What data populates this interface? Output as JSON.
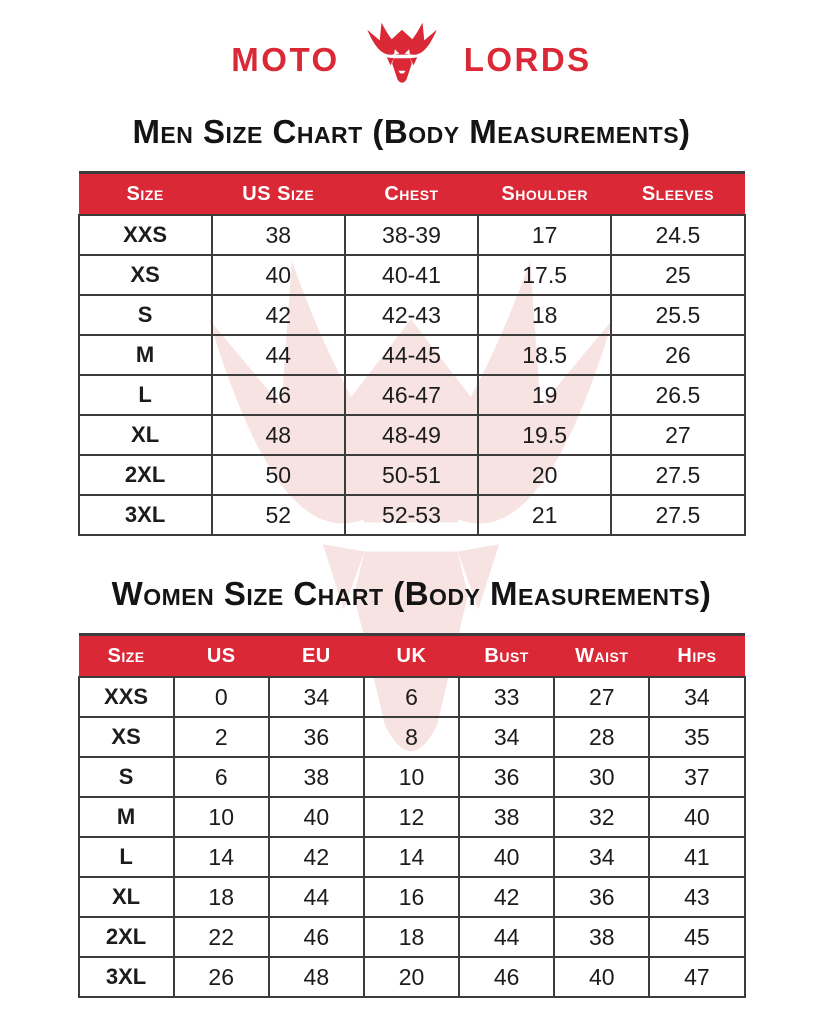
{
  "logo": {
    "left_text": "MOTO",
    "right_text": "LORDS",
    "icon": "motolords-horned-helmet-icon"
  },
  "men_chart": {
    "title": "Men Size Chart (Body Measurements)",
    "columns": [
      "Size",
      "US Size",
      "Chest",
      "Shoulder",
      "Sleeves"
    ],
    "rows": [
      [
        "XXS",
        "38",
        "38-39",
        "17",
        "24.5"
      ],
      [
        "XS",
        "40",
        "40-41",
        "17.5",
        "25"
      ],
      [
        "S",
        "42",
        "42-43",
        "18",
        "25.5"
      ],
      [
        "M",
        "44",
        "44-45",
        "18.5",
        "26"
      ],
      [
        "L",
        "46",
        "46-47",
        "19",
        "26.5"
      ],
      [
        "XL",
        "48",
        "48-49",
        "19.5",
        "27"
      ],
      [
        "2XL",
        "50",
        "50-51",
        "20",
        "27.5"
      ],
      [
        "3XL",
        "52",
        "52-53",
        "21",
        "27.5"
      ]
    ]
  },
  "women_chart": {
    "title": "Women Size Chart (Body Measurements)",
    "columns": [
      "Size",
      "US",
      "EU",
      "UK",
      "Bust",
      "Waist",
      "Hips"
    ],
    "rows": [
      [
        "XXS",
        "0",
        "34",
        "6",
        "33",
        "27",
        "34"
      ],
      [
        "XS",
        "2",
        "36",
        "8",
        "34",
        "28",
        "35"
      ],
      [
        "S",
        "6",
        "38",
        "10",
        "36",
        "30",
        "37"
      ],
      [
        "M",
        "10",
        "40",
        "12",
        "38",
        "32",
        "40"
      ],
      [
        "L",
        "14",
        "42",
        "14",
        "40",
        "34",
        "41"
      ],
      [
        "XL",
        "18",
        "44",
        "16",
        "42",
        "36",
        "43"
      ],
      [
        "2XL",
        "22",
        "46",
        "18",
        "44",
        "38",
        "45"
      ],
      [
        "3XL",
        "26",
        "48",
        "20",
        "46",
        "40",
        "47"
      ]
    ]
  },
  "colors": {
    "accent_red": "#da2837",
    "header_text": "#ffffff",
    "body_text": "#1c1c1c",
    "table_border": "#3c3c3c",
    "watermark_pink": "#f8e3e3"
  }
}
